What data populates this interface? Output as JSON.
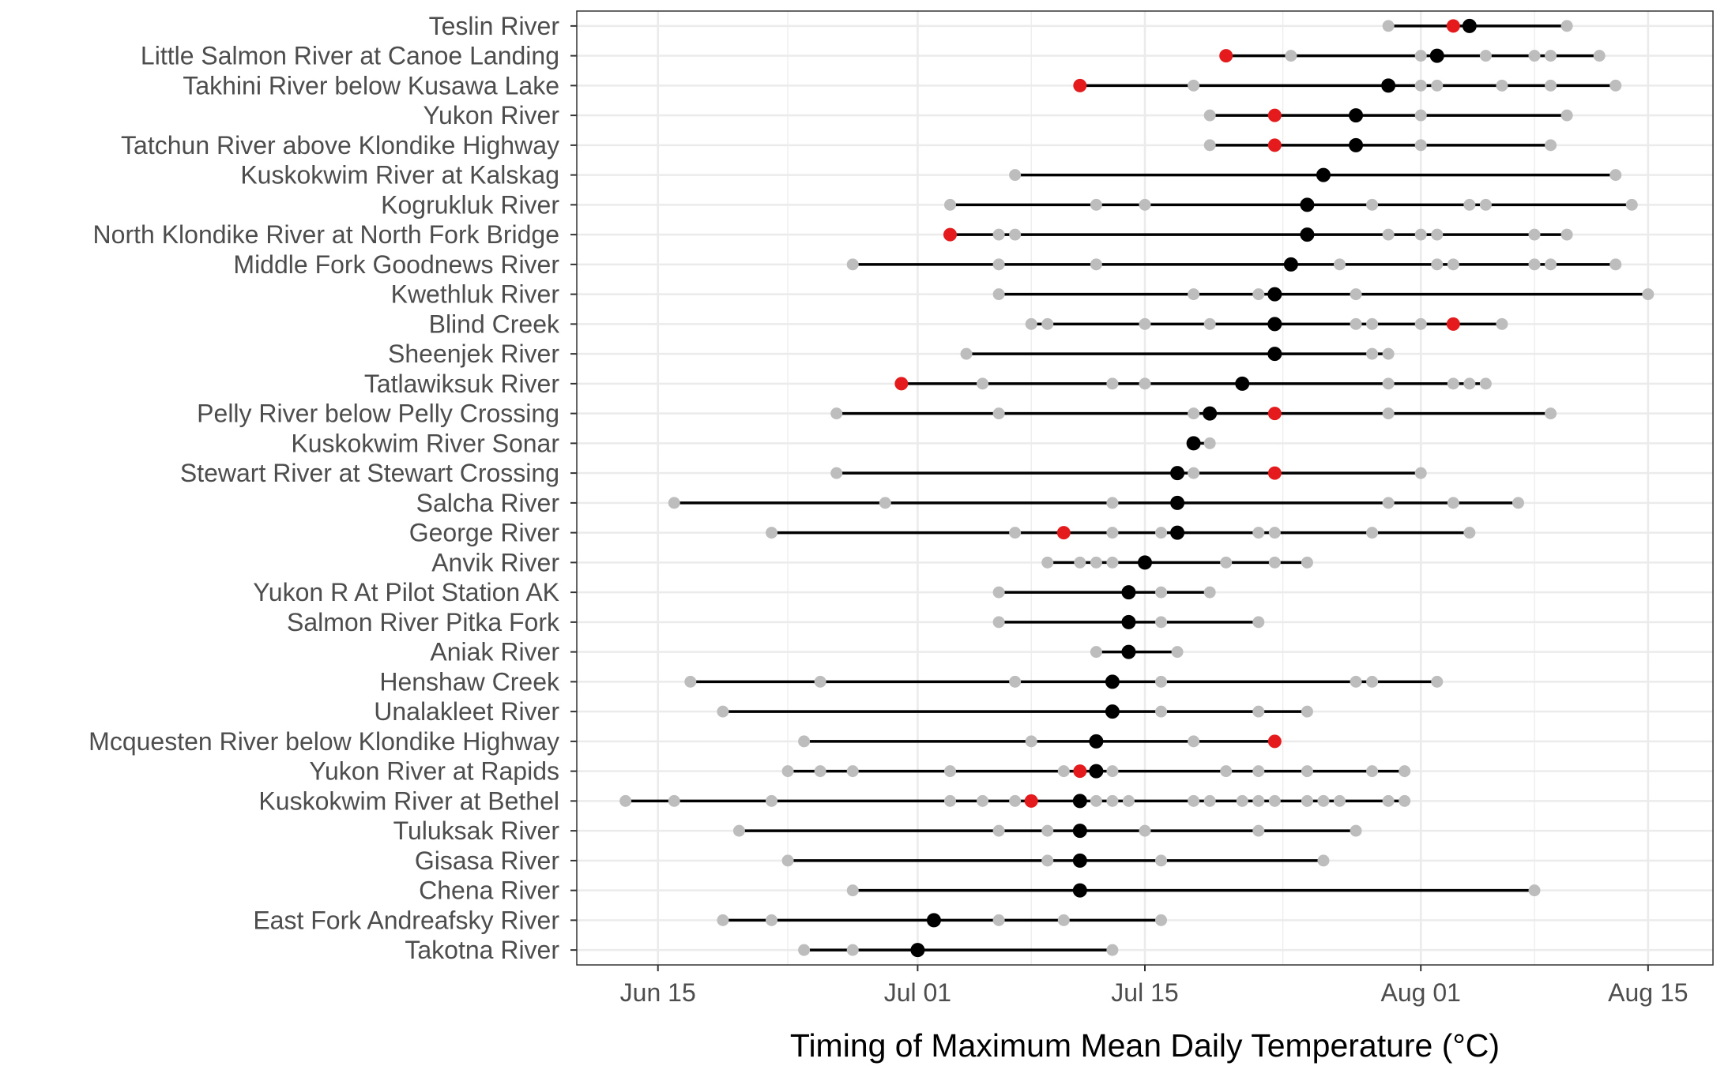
{
  "chart_data": {
    "type": "scatter",
    "subtype": "range-dot-plot",
    "xlabel": "Timing of Maximum Mean Daily Temperature (°C)",
    "ylabel": "",
    "x_ticks": [
      "Jun 15",
      "Jul 01",
      "Jul 15",
      "Aug 01",
      "Aug 15"
    ],
    "xlim": [
      "Jun 10",
      "Aug 19"
    ],
    "grid": true,
    "legend": "none",
    "colors": {
      "median": "#000000",
      "highlight": "#e41a1c",
      "year_point": "#bdbdbd",
      "range_line": "#000000",
      "grid": "#ebebeb",
      "panel_border": "#333333"
    },
    "rivers": [
      {
        "name": "Teslin River",
        "median": "Aug 04",
        "highlight": "Aug 03",
        "points": [
          "Jul 30",
          "Aug 10"
        ]
      },
      {
        "name": "Little Salmon River at Canoe Landing",
        "median": "Aug 02",
        "highlight": "Jul 20",
        "points": [
          "Jul 24",
          "Aug 01",
          "Aug 05",
          "Aug 08",
          "Aug 09",
          "Aug 12"
        ]
      },
      {
        "name": "Takhini River below Kusawa Lake",
        "median": "Jul 30",
        "highlight": "Jul 11",
        "points": [
          "Jul 18",
          "Aug 01",
          "Aug 02",
          "Aug 06",
          "Aug 09",
          "Aug 13"
        ]
      },
      {
        "name": "Yukon River",
        "median": "Jul 28",
        "highlight": "Jul 23",
        "points": [
          "Jul 19",
          "Aug 01",
          "Aug 10"
        ]
      },
      {
        "name": "Tatchun River above Klondike Highway",
        "median": "Jul 28",
        "highlight": "Jul 23",
        "points": [
          "Jul 19",
          "Aug 01",
          "Aug 09"
        ]
      },
      {
        "name": "Kuskokwim River at Kalskag",
        "median": "Jul 26",
        "highlight": null,
        "points": [
          "Jul 07",
          "Aug 13"
        ]
      },
      {
        "name": "Kogrukluk River",
        "median": "Jul 25",
        "highlight": null,
        "points": [
          "Jul 03",
          "Jul 12",
          "Jul 15",
          "Jul 29",
          "Aug 04",
          "Aug 05",
          "Aug 14"
        ]
      },
      {
        "name": "North Klondike River at North Fork Bridge",
        "median": "Jul 25",
        "highlight": "Jul 03",
        "points": [
          "Jul 06",
          "Jul 07",
          "Jul 30",
          "Aug 01",
          "Aug 02",
          "Aug 08",
          "Aug 10"
        ]
      },
      {
        "name": "Middle Fork Goodnews River",
        "median": "Jul 24",
        "highlight": null,
        "points": [
          "Jun 27",
          "Jul 06",
          "Jul 12",
          "Jul 27",
          "Aug 02",
          "Aug 03",
          "Aug 08",
          "Aug 09",
          "Aug 13"
        ]
      },
      {
        "name": "Kwethluk River",
        "median": "Jul 23",
        "highlight": null,
        "points": [
          "Jul 06",
          "Jul 18",
          "Jul 22",
          "Jul 28",
          "Aug 15"
        ]
      },
      {
        "name": "Blind Creek",
        "median": "Jul 23",
        "highlight": "Aug 03",
        "points": [
          "Jul 08",
          "Jul 09",
          "Jul 15",
          "Jul 19",
          "Jul 28",
          "Jul 29",
          "Aug 01",
          "Aug 06"
        ]
      },
      {
        "name": "Sheenjek River",
        "median": "Jul 23",
        "highlight": null,
        "points": [
          "Jul 04",
          "Jul 29",
          "Jul 30"
        ]
      },
      {
        "name": "Tatlawiksuk River",
        "median": "Jul 21",
        "highlight": "Jun 30",
        "points": [
          "Jul 05",
          "Jul 13",
          "Jul 15",
          "Jul 30",
          "Aug 03",
          "Aug 04",
          "Aug 05"
        ]
      },
      {
        "name": "Pelly River below Pelly Crossing",
        "median": "Jul 19",
        "highlight": "Jul 23",
        "points": [
          "Jun 26",
          "Jul 06",
          "Jul 18",
          "Jul 30",
          "Aug 09"
        ]
      },
      {
        "name": "Kuskokwim River Sonar",
        "median": "Jul 18",
        "highlight": null,
        "points": [
          "Jul 19"
        ]
      },
      {
        "name": "Stewart River at Stewart Crossing",
        "median": "Jul 17",
        "highlight": "Jul 23",
        "points": [
          "Jun 26",
          "Jul 18",
          "Aug 01"
        ]
      },
      {
        "name": "Salcha River",
        "median": "Jul 17",
        "highlight": null,
        "points": [
          "Jun 16",
          "Jun 29",
          "Jul 13",
          "Jul 30",
          "Aug 03",
          "Aug 07"
        ]
      },
      {
        "name": "George River",
        "median": "Jul 17",
        "highlight": "Jul 10",
        "points": [
          "Jun 22",
          "Jul 07",
          "Jul 13",
          "Jul 16",
          "Jul 22",
          "Jul 23",
          "Jul 29",
          "Aug 04"
        ]
      },
      {
        "name": "Anvik River",
        "median": "Jul 15",
        "highlight": null,
        "points": [
          "Jul 09",
          "Jul 11",
          "Jul 12",
          "Jul 13",
          "Jul 20",
          "Jul 23",
          "Jul 25"
        ]
      },
      {
        "name": "Yukon R At Pilot Station AK",
        "median": "Jul 14",
        "highlight": null,
        "points": [
          "Jul 06",
          "Jul 16",
          "Jul 19"
        ]
      },
      {
        "name": "Salmon River Pitka Fork",
        "median": "Jul 14",
        "highlight": null,
        "points": [
          "Jul 06",
          "Jul 16",
          "Jul 22"
        ]
      },
      {
        "name": "Aniak River",
        "median": "Jul 14",
        "highlight": null,
        "points": [
          "Jul 12",
          "Jul 17"
        ]
      },
      {
        "name": "Henshaw Creek",
        "median": "Jul 13",
        "highlight": null,
        "points": [
          "Jun 17",
          "Jun 25",
          "Jul 07",
          "Jul 16",
          "Jul 28",
          "Jul 29",
          "Aug 02"
        ]
      },
      {
        "name": "Unalakleet River",
        "median": "Jul 13",
        "highlight": null,
        "points": [
          "Jun 19",
          "Jul 16",
          "Jul 22",
          "Jul 25"
        ]
      },
      {
        "name": "Mcquesten River below Klondike Highway",
        "median": "Jul 12",
        "highlight": "Jul 23",
        "points": [
          "Jun 24",
          "Jul 08",
          "Jul 18"
        ]
      },
      {
        "name": "Yukon River at Rapids",
        "median": "Jul 12",
        "highlight": "Jul 11",
        "points": [
          "Jun 23",
          "Jun 25",
          "Jun 27",
          "Jul 03",
          "Jul 10",
          "Jul 13",
          "Jul 20",
          "Jul 22",
          "Jul 25",
          "Jul 29",
          "Jul 31"
        ]
      },
      {
        "name": "Kuskokwim River at Bethel",
        "median": "Jul 11",
        "highlight": "Jul 08",
        "points": [
          "Jun 13",
          "Jun 16",
          "Jun 22",
          "Jul 03",
          "Jul 05",
          "Jul 07",
          "Jul 12",
          "Jul 13",
          "Jul 14",
          "Jul 18",
          "Jul 19",
          "Jul 21",
          "Jul 22",
          "Jul 23",
          "Jul 25",
          "Jul 26",
          "Jul 27",
          "Jul 30",
          "Jul 31"
        ]
      },
      {
        "name": "Tuluksak River",
        "median": "Jul 11",
        "highlight": null,
        "points": [
          "Jun 20",
          "Jul 06",
          "Jul 09",
          "Jul 15",
          "Jul 22",
          "Jul 28"
        ]
      },
      {
        "name": "Gisasa River",
        "median": "Jul 11",
        "highlight": null,
        "points": [
          "Jun 23",
          "Jul 09",
          "Jul 16",
          "Jul 26"
        ]
      },
      {
        "name": "Chena River",
        "median": "Jul 11",
        "highlight": null,
        "points": [
          "Jun 27",
          "Aug 08"
        ]
      },
      {
        "name": "East Fork Andreafsky River",
        "median": "Jul 02",
        "highlight": null,
        "points": [
          "Jun 19",
          "Jun 22",
          "Jul 06",
          "Jul 10",
          "Jul 16"
        ]
      },
      {
        "name": "Takotna River",
        "median": "Jul 01",
        "highlight": null,
        "points": [
          "Jun 24",
          "Jun 27",
          "Jul 13"
        ]
      }
    ]
  }
}
